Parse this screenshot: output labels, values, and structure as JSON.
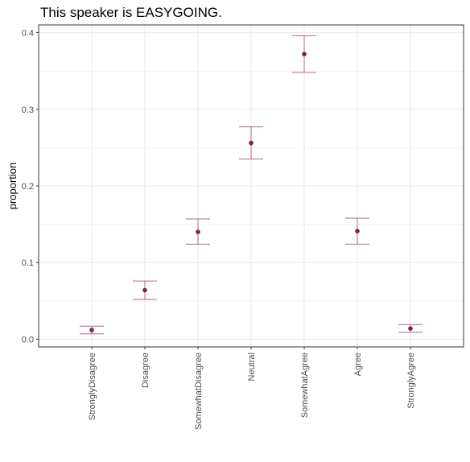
{
  "chart_data": {
    "type": "scatter",
    "title": "This speaker is EASYGOING.",
    "xlabel": "",
    "ylabel": "proportion",
    "categories": [
      "StronglyDisagree",
      "Disagree",
      "SomewhatDisagree",
      "Neutral",
      "SomewhatAgree",
      "Agree",
      "StronglyAgree"
    ],
    "values": [
      0.012,
      0.064,
      0.14,
      0.256,
      0.372,
      0.141,
      0.014
    ],
    "error_low": [
      0.007,
      0.052,
      0.124,
      0.235,
      0.348,
      0.124,
      0.009
    ],
    "error_high": [
      0.017,
      0.076,
      0.157,
      0.277,
      0.396,
      0.158,
      0.019
    ],
    "ylim": [
      -0.01,
      0.41
    ],
    "yticks": [
      0.0,
      0.1,
      0.2,
      0.3,
      0.4
    ],
    "ytick_labels": [
      "0.0",
      "0.1",
      "0.2",
      "0.3",
      "0.4"
    ],
    "grid": true,
    "colors": {
      "point": "#7b1f4f",
      "errorbar": "#b0678f",
      "grid": "#ebebeb",
      "panel_border": "#333333"
    }
  }
}
